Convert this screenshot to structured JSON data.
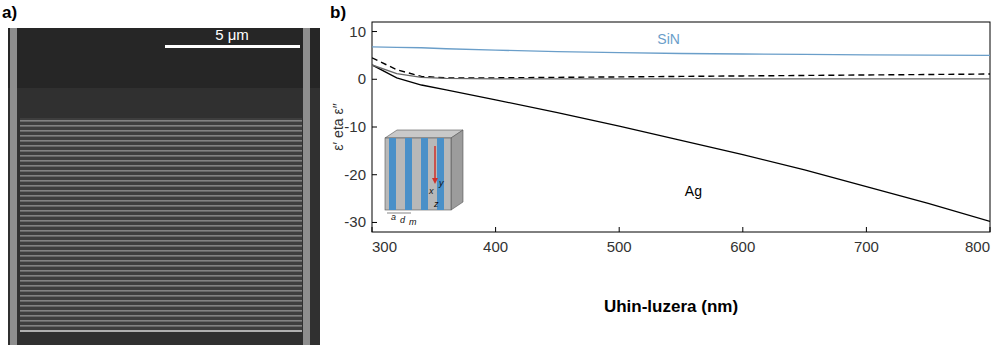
{
  "panel_a": {
    "label": "a)",
    "scale_bar": "5 μm"
  },
  "panel_b": {
    "label": "b)",
    "inset_labels": [
      "a",
      "d",
      "m",
      "x",
      "y",
      "z"
    ]
  },
  "chart_data": {
    "type": "line",
    "x_label": "Uhin-luzera (nm)",
    "y_label": "ε′ eta ε″",
    "x": [
      300,
      320,
      340,
      360,
      400,
      450,
      500,
      550,
      600,
      650,
      700,
      750,
      800
    ],
    "series": [
      {
        "color": "#6a9ec9",
        "line_style": "solid",
        "values": [
          6.8,
          6.7,
          6.6,
          6.4,
          6.1,
          5.8,
          5.6,
          5.4,
          5.3,
          5.2,
          5.1,
          5.05,
          5.0
        ]
      },
      {
        "color": "#000000",
        "line_style": "solid",
        "values": [
          3.0,
          0.3,
          -1.2,
          -2.2,
          -4.3,
          -7.0,
          -9.8,
          -12.8,
          -15.8,
          -19.0,
          -22.5,
          -26.0,
          -29.8
        ]
      },
      {
        "color": "#000000",
        "line_style": "dashed",
        "values": [
          4.5,
          2.0,
          0.6,
          0.3,
          0.3,
          0.4,
          0.5,
          0.6,
          0.7,
          0.8,
          0.9,
          1.0,
          1.1
        ]
      },
      {
        "color": "#666666",
        "line_style": "solid",
        "values": [
          3.0,
          1.2,
          0.4,
          0.2,
          0.1,
          0.1,
          0.1,
          0.1,
          0.1,
          0.1,
          0.1,
          0.1,
          0.1
        ]
      }
    ],
    "annotations": [
      {
        "text": "SiN",
        "x": 540,
        "y": 7.4
      },
      {
        "text": "Ag",
        "x": 560,
        "y": -24.5
      }
    ],
    "xlim": [
      300,
      800
    ],
    "ylim": [
      -32,
      12
    ],
    "xticks": [
      300,
      400,
      500,
      600,
      700,
      800
    ],
    "yticks": [
      -30,
      -20,
      -10,
      0,
      10
    ],
    "grid": false
  }
}
